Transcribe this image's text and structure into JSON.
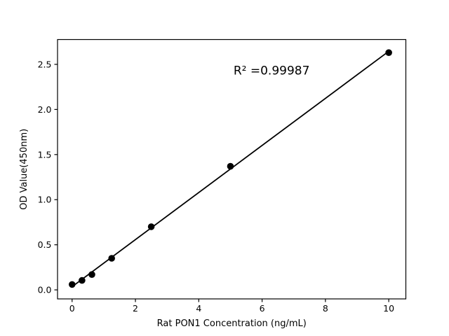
{
  "chart_data": {
    "type": "scatter",
    "title": "",
    "xlabel": "Rat PON1 Concentration (ng/mL)",
    "ylabel": "OD Value(450nm)",
    "x": [
      0,
      0.3125,
      0.625,
      1.25,
      2.5,
      5,
      10
    ],
    "y": [
      0.06,
      0.105,
      0.17,
      0.35,
      0.7,
      1.37,
      2.63
    ],
    "fit_line": {
      "slope": 0.2609,
      "intercept": 0.0355,
      "x_start": 0,
      "x_end": 10
    },
    "annotation": {
      "text": "R² =0.99987",
      "x": 6.3,
      "y": 2.435
    },
    "xlim": [
      -0.46,
      10.54
    ],
    "ylim": [
      -0.1,
      2.775
    ],
    "xticks": [
      0,
      2,
      4,
      6,
      8,
      10
    ],
    "xtick_labels": [
      "0",
      "2",
      "4",
      "6",
      "8",
      "10"
    ],
    "yticks": [
      0,
      0.5,
      1,
      1.5,
      2,
      2.5
    ],
    "ytick_labels": [
      "0.0",
      "0.5",
      "1.0",
      "1.5",
      "2.0",
      "2.5"
    ],
    "grid": false,
    "legend_position": "none",
    "marker_color": "#000000",
    "line_color": "#000000",
    "spine_color": "#000000",
    "background": "#ffffff"
  }
}
